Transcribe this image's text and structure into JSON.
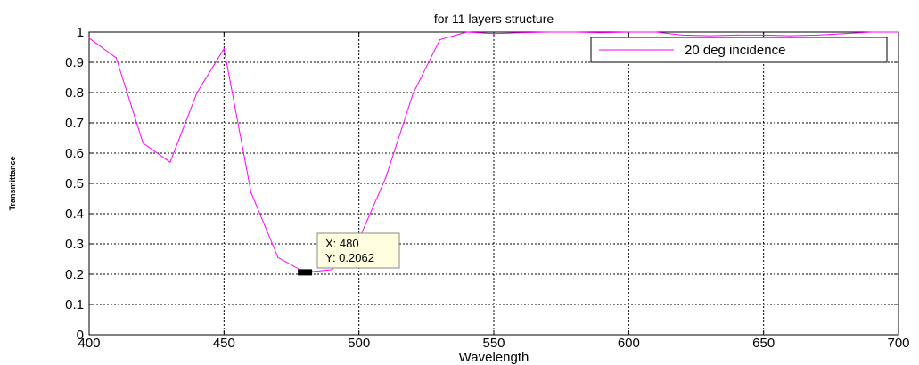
{
  "chart_data": {
    "type": "line",
    "title": "for 11 layers structure",
    "xlabel": "Wavelength",
    "ylabel": "Transmittance",
    "xlim": [
      400,
      700
    ],
    "ylim": [
      0,
      1
    ],
    "xticks": [
      "400",
      "450",
      "500",
      "550",
      "600",
      "650",
      "700"
    ],
    "yticks": [
      "0",
      "0.1",
      "0.2",
      "0.3",
      "0.4",
      "0.5",
      "0.6",
      "0.7",
      "0.8",
      "0.9",
      "1"
    ],
    "grid": true,
    "legend_position": "top-right",
    "series": [
      {
        "name": "20 deg incidence",
        "color": "#ff00ff",
        "x": [
          400,
          410,
          420,
          430,
          440,
          450,
          460,
          470,
          480,
          490,
          500,
          510,
          520,
          530,
          540,
          550,
          560,
          570,
          580,
          590,
          600,
          610,
          620,
          630,
          640,
          650,
          660,
          670,
          680,
          690,
          700
        ],
        "y": [
          0.98,
          0.915,
          0.633,
          0.57,
          0.8,
          0.945,
          0.47,
          0.255,
          0.2062,
          0.215,
          0.315,
          0.52,
          0.795,
          0.975,
          1.0,
          0.995,
          0.998,
          1.0,
          1.0,
          0.998,
          1.0,
          1.0,
          0.99,
          0.988,
          0.99,
          0.99,
          0.988,
          0.99,
          0.995,
          1.0,
          1.0
        ]
      }
    ],
    "datatip": {
      "x_text": "X: 480",
      "y_text": "Y: 0.2062",
      "x": 480,
      "y": 0.2062
    }
  }
}
